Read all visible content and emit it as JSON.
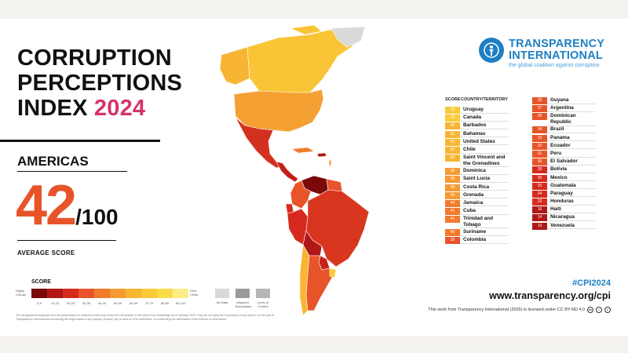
{
  "header": {
    "title_line1": "CORRUPTION",
    "title_line2": "PERCEPTIONS",
    "title_line3": "INDEX",
    "title_year": "2024"
  },
  "region": {
    "name": "AMERICAS",
    "average_score": "42",
    "score_denominator": "/100",
    "average_label": "AVERAGE SCORE"
  },
  "legend": {
    "title": "SCORE",
    "low_label": "Highly Corrupt",
    "high_label": "Very Clean",
    "ranges": [
      "0-9",
      "10-19",
      "20-29",
      "30-39",
      "40-49",
      "50-59",
      "60-69",
      "70-79",
      "80-89",
      "90-100"
    ],
    "colors": [
      "#7a0a0a",
      "#b01717",
      "#d62a1e",
      "#e8542a",
      "#f07b2c",
      "#f59a33",
      "#f7b533",
      "#f9ca37",
      "#fadc4b",
      "#fcec86"
    ],
    "extras": [
      {
        "label": "No Data",
        "color": "#d9d9d9"
      },
      {
        "label": "Disputed Boundaries",
        "color": "#9a9a9a"
      },
      {
        "label": "Lines of Control",
        "color": "#b5b5b5"
      }
    ]
  },
  "disclaimer": "The designations employed and the presentation of material on this map follow the UN practice to the best of our knowledge as of January 2025. They do not imply the expression of any opinion on the part of Transparency International concerning the legal status of any country, territory, city or area or of its authorities, or concerning the delimitation of its frontiers or boundaries.",
  "logo": {
    "line1": "TRANSPARENCY",
    "line2": "INTERNATIONAL",
    "tagline": "the global coalition against corruption",
    "color": "#1e80c3"
  },
  "table": {
    "score_header": "SCORE",
    "country_header": "COUNTRY/TERRITORY",
    "left": [
      {
        "score": 76,
        "name": "Uruguay"
      },
      {
        "score": 75,
        "name": "Canada"
      },
      {
        "score": 68,
        "name": "Barbados"
      },
      {
        "score": 65,
        "name": "Bahamas"
      },
      {
        "score": 65,
        "name": "United States"
      },
      {
        "score": 63,
        "name": "Chile"
      },
      {
        "score": 62,
        "name": "Saint Vincent and the Grenadines"
      },
      {
        "score": 58,
        "name": "Dominica"
      },
      {
        "score": 58,
        "name": "Saint Lucia"
      },
      {
        "score": 58,
        "name": "Costa Rica"
      },
      {
        "score": 56,
        "name": "Grenada"
      },
      {
        "score": 44,
        "name": "Jamaica"
      },
      {
        "score": 41,
        "name": "Cuba"
      },
      {
        "score": 41,
        "name": "Trinidad and Tobago"
      },
      {
        "score": 40,
        "name": "Suriname"
      },
      {
        "score": 39,
        "name": "Colombia"
      }
    ],
    "right": [
      {
        "score": 39,
        "name": "Guyana"
      },
      {
        "score": 37,
        "name": "Argentina"
      },
      {
        "score": 36,
        "name": "Dominican Republic"
      },
      {
        "score": 34,
        "name": "Brazil"
      },
      {
        "score": 33,
        "name": "Panama"
      },
      {
        "score": 32,
        "name": "Ecuador"
      },
      {
        "score": 31,
        "name": "Peru"
      },
      {
        "score": 30,
        "name": "El Salvador"
      },
      {
        "score": 28,
        "name": "Bolivia"
      },
      {
        "score": 26,
        "name": "Mexico"
      },
      {
        "score": 25,
        "name": "Guatemala"
      },
      {
        "score": 24,
        "name": "Paraguay"
      },
      {
        "score": 22,
        "name": "Honduras"
      },
      {
        "score": 16,
        "name": "Haiti"
      },
      {
        "score": 14,
        "name": "Nicaragua"
      },
      {
        "score": 10,
        "name": "Venezuela"
      }
    ]
  },
  "footer": {
    "hashtag": "#CPI2024",
    "website": "www.transparency.org/cpi",
    "license": "This work from Transparency International (2025) is licensed under CC BY-ND 4.0",
    "license_icons": [
      "cc-icon",
      "by-icon",
      "nd-icon"
    ]
  }
}
